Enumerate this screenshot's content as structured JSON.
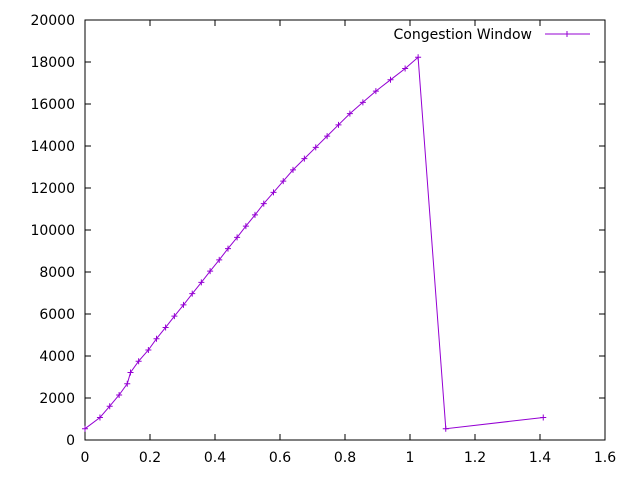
{
  "chart_data": {
    "type": "line",
    "legend": {
      "label": "Congestion Window",
      "placement": "top-right"
    },
    "xlim": [
      0,
      1.6
    ],
    "ylim": [
      0,
      20000
    ],
    "x_ticks": [
      "0",
      "0.2",
      "0.4",
      "0.6",
      "0.8",
      "1",
      "1.2",
      "1.4",
      "1.6"
    ],
    "y_ticks": [
      "0",
      "2000",
      "4000",
      "6000",
      "8000",
      "10000",
      "12000",
      "14000",
      "16000",
      "18000",
      "20000"
    ],
    "grid": false,
    "series": [
      {
        "name": "Congestion Window",
        "color": "#9400d3",
        "marker": "plus",
        "points": [
          [
            0.0,
            536
          ],
          [
            0.046,
            1072
          ],
          [
            0.076,
            1608
          ],
          [
            0.105,
            2144
          ],
          [
            0.13,
            2680
          ],
          [
            0.14,
            3216
          ],
          [
            0.165,
            3752
          ],
          [
            0.195,
            4288
          ],
          [
            0.22,
            4824
          ],
          [
            0.248,
            5360
          ],
          [
            0.275,
            5896
          ],
          [
            0.303,
            6432
          ],
          [
            0.33,
            6968
          ],
          [
            0.358,
            7504
          ],
          [
            0.385,
            8040
          ],
          [
            0.413,
            8576
          ],
          [
            0.44,
            9112
          ],
          [
            0.468,
            9648
          ],
          [
            0.495,
            10184
          ],
          [
            0.523,
            10720
          ],
          [
            0.55,
            11256
          ],
          [
            0.58,
            11792
          ],
          [
            0.61,
            12328
          ],
          [
            0.64,
            12864
          ],
          [
            0.675,
            13400
          ],
          [
            0.71,
            13936
          ],
          [
            0.745,
            14472
          ],
          [
            0.78,
            15008
          ],
          [
            0.815,
            15544
          ],
          [
            0.855,
            16080
          ],
          [
            0.895,
            16616
          ],
          [
            0.94,
            17152
          ],
          [
            0.985,
            17688
          ],
          [
            1.025,
            18224
          ],
          [
            1.11,
            536
          ],
          [
            1.41,
            1072
          ]
        ]
      }
    ]
  }
}
